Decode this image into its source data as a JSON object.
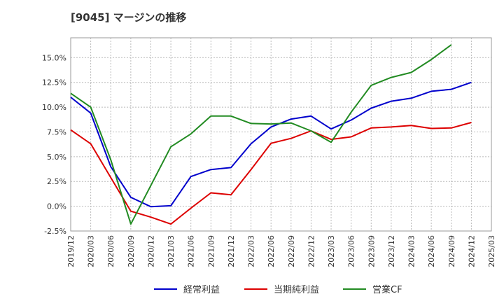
{
  "chart_data": {
    "type": "line",
    "title": "[9045]  マージンの推移",
    "xlabel": "",
    "ylabel": "",
    "ylim": [
      -2.5,
      17
    ],
    "yticks": [
      -2.5,
      0,
      2.5,
      5,
      7.5,
      10,
      12.5,
      15
    ],
    "ytick_labels": [
      "-2.5%",
      "0.0%",
      "2.5%",
      "5.0%",
      "7.5%",
      "10.0%",
      "12.5%",
      "15.0%"
    ],
    "x": [
      "2019/12",
      "2020/03",
      "2020/06",
      "2020/09",
      "2020/12",
      "2021/03",
      "2021/06",
      "2021/09",
      "2021/12",
      "2022/03",
      "2022/06",
      "2022/09",
      "2022/12",
      "2023/03",
      "2023/06",
      "2023/09",
      "2023/12",
      "2024/03",
      "2024/06",
      "2024/09",
      "2024/12",
      "2025/03"
    ],
    "grid": true,
    "legend_position": "bottom",
    "series": [
      {
        "name": "経常利益",
        "color": "#0000cc",
        "values": [
          11.0,
          9.4,
          4.0,
          0.9,
          -0.05,
          0.05,
          3.0,
          3.7,
          3.9,
          6.3,
          8.0,
          8.8,
          9.1,
          7.8,
          8.7,
          9.9,
          10.6,
          10.9,
          11.6,
          11.8,
          12.5,
          null
        ]
      },
      {
        "name": "当期純利益",
        "color": "#dd0000",
        "values": [
          7.7,
          6.3,
          2.9,
          -0.5,
          -1.1,
          -1.8,
          -0.2,
          1.35,
          1.15,
          3.7,
          6.35,
          6.85,
          7.6,
          6.75,
          7.0,
          7.9,
          8.0,
          8.15,
          7.85,
          7.9,
          8.45,
          null
        ]
      },
      {
        "name": "営業CF",
        "color": "#228b22",
        "values": [
          11.4,
          10.0,
          4.7,
          -1.8,
          2.1,
          6.0,
          7.3,
          9.1,
          9.1,
          8.35,
          8.3,
          8.4,
          7.6,
          6.45,
          9.5,
          12.2,
          13.0,
          13.5,
          14.8,
          16.3,
          null,
          null
        ]
      }
    ]
  }
}
